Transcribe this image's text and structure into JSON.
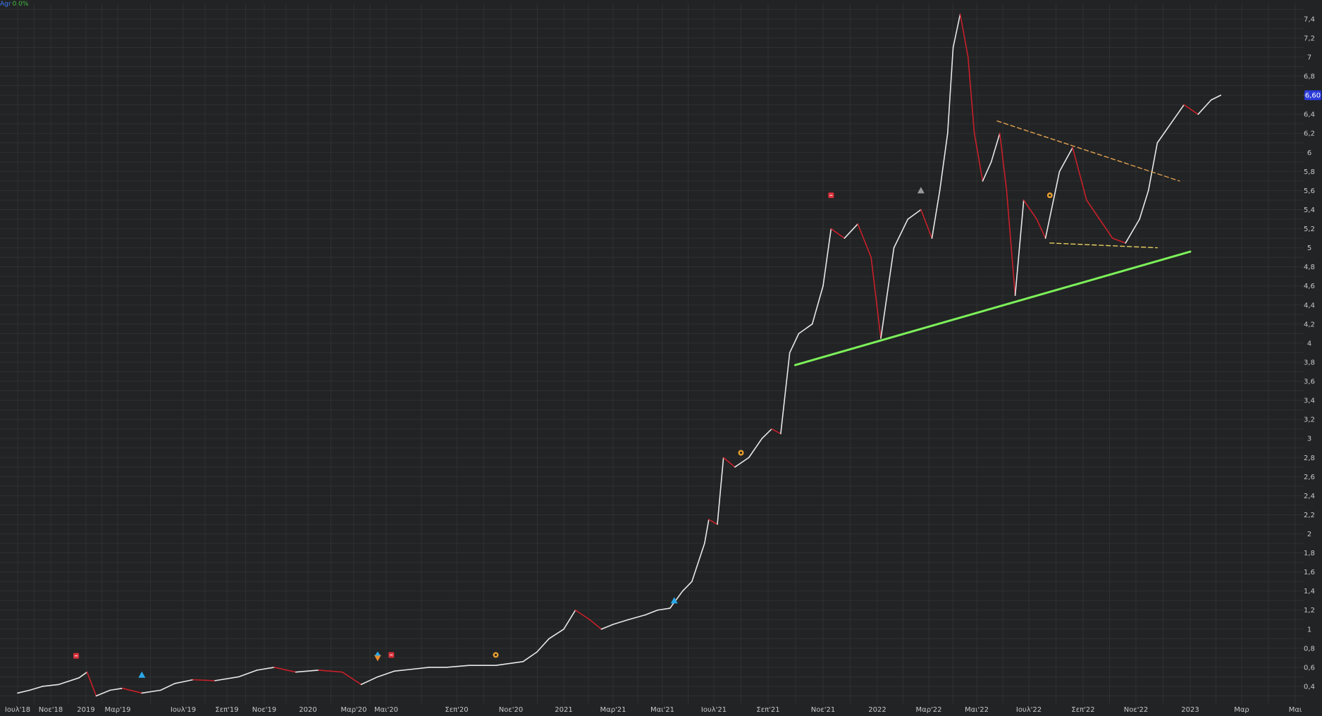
{
  "legend": {
    "name": "Agr",
    "value": "0.0%"
  },
  "colors": {
    "background": "#222324",
    "grid": "#2e3031",
    "up": "#e8e8e8",
    "down": "#c8202a",
    "support": "#7cf05a",
    "resistance": "#e0a050",
    "base_line": "#e8d060",
    "last_price_bg": "#2a3ad8"
  },
  "chart_data": {
    "type": "line",
    "title": "",
    "xlabel": "",
    "ylabel": "",
    "ylim": [
      0.3,
      7.5
    ],
    "grid": true,
    "y_ticks": [
      "0,4",
      "0,6",
      "0,8",
      "1",
      "1,2",
      "1,4",
      "1,6",
      "1,8",
      "2",
      "2,2",
      "2,4",
      "2,6",
      "2,8",
      "3",
      "3,2",
      "3,4",
      "3,6",
      "3,8",
      "4",
      "4,2",
      "4,4",
      "4,6",
      "4,8",
      "5",
      "5,2",
      "5,4",
      "5,6",
      "5,8",
      "6",
      "6,2",
      "6,4",
      "6,6",
      "6,8",
      "7",
      "7,2",
      "7,4"
    ],
    "x_ticks": [
      {
        "date": "2018-07-01",
        "label": "Ιουλ'18"
      },
      {
        "date": "2018-11-01",
        "label": "Νοε'18"
      },
      {
        "date": "2019-01-01",
        "label": "2019"
      },
      {
        "date": "2019-03-01",
        "label": "Μαρ'19"
      },
      {
        "date": "2019-07-01",
        "label": "Ιουλ'19"
      },
      {
        "date": "2019-09-01",
        "label": "Σεπ'19"
      },
      {
        "date": "2019-11-01",
        "label": "Νοε'19"
      },
      {
        "date": "2020-01-01",
        "label": "2020"
      },
      {
        "date": "2020-03-01",
        "label": "Μαρ'20"
      },
      {
        "date": "2020-05-01",
        "label": "Μαι'20"
      },
      {
        "date": "2020-09-01",
        "label": "Σεπ'20"
      },
      {
        "date": "2020-11-01",
        "label": "Νοε'20"
      },
      {
        "date": "2021-01-01",
        "label": "2021"
      },
      {
        "date": "2021-03-01",
        "label": "Μαρ'21"
      },
      {
        "date": "2021-05-01",
        "label": "Μαι'21"
      },
      {
        "date": "2021-07-01",
        "label": "Ιουλ'21"
      },
      {
        "date": "2021-09-01",
        "label": "Σεπ'21"
      },
      {
        "date": "2021-11-01",
        "label": "Νοε'21"
      },
      {
        "date": "2022-01-01",
        "label": "2022"
      },
      {
        "date": "2022-03-01",
        "label": "Μαρ'22"
      },
      {
        "date": "2022-05-01",
        "label": "Μαι'22"
      },
      {
        "date": "2022-07-01",
        "label": "Ιουλ'22"
      },
      {
        "date": "2022-09-01",
        "label": "Σεπ'22"
      },
      {
        "date": "2022-11-01",
        "label": "Νοε'22"
      },
      {
        "date": "2023-01-01",
        "label": "2023"
      },
      {
        "date": "2023-03-01",
        "label": "Μαρ"
      },
      {
        "date": "2023-05-01",
        "label": "Μαι"
      }
    ],
    "last_price": {
      "value": 6.6,
      "label": "6,60"
    },
    "series": [
      {
        "values": [
          [
            "2018-07-01",
            0.33
          ],
          [
            "2018-08-15",
            0.36
          ],
          [
            "2018-10-01",
            0.4
          ],
          [
            "2018-11-15",
            0.42
          ],
          [
            "2018-12-20",
            0.49
          ],
          [
            "2019-01-03",
            0.55
          ],
          [
            "2019-01-20",
            0.3
          ],
          [
            "2019-02-15",
            0.36
          ],
          [
            "2019-03-10",
            0.38
          ],
          [
            "2019-04-15",
            0.33
          ],
          [
            "2019-05-20",
            0.36
          ],
          [
            "2019-06-15",
            0.43
          ],
          [
            "2019-07-15",
            0.47
          ],
          [
            "2019-08-15",
            0.46
          ],
          [
            "2019-09-20",
            0.5
          ],
          [
            "2019-10-20",
            0.57
          ],
          [
            "2019-11-15",
            0.6
          ],
          [
            "2019-12-15",
            0.55
          ],
          [
            "2020-01-15",
            0.57
          ],
          [
            "2020-02-15",
            0.55
          ],
          [
            "2020-03-15",
            0.42
          ],
          [
            "2020-04-15",
            0.5
          ],
          [
            "2020-05-15",
            0.56
          ],
          [
            "2020-06-15",
            0.58
          ],
          [
            "2020-07-15",
            0.6
          ],
          [
            "2020-08-15",
            0.6
          ],
          [
            "2020-09-15",
            0.62
          ],
          [
            "2020-10-15",
            0.62
          ],
          [
            "2020-11-15",
            0.66
          ],
          [
            "2020-12-01",
            0.76
          ],
          [
            "2020-12-15",
            0.9
          ],
          [
            "2021-01-01",
            1.0
          ],
          [
            "2021-01-15",
            1.2
          ],
          [
            "2021-02-01",
            1.1
          ],
          [
            "2021-02-15",
            1.0
          ],
          [
            "2021-03-01",
            1.05
          ],
          [
            "2021-03-20",
            1.1
          ],
          [
            "2021-04-10",
            1.15
          ],
          [
            "2021-04-25",
            1.2
          ],
          [
            "2021-05-10",
            1.22
          ],
          [
            "2021-05-25",
            1.4
          ],
          [
            "2021-06-05",
            1.5
          ],
          [
            "2021-06-20",
            1.9
          ],
          [
            "2021-06-25",
            2.15
          ],
          [
            "2021-07-05",
            2.1
          ],
          [
            "2021-07-12",
            2.8
          ],
          [
            "2021-07-25",
            2.7
          ],
          [
            "2021-08-10",
            2.8
          ],
          [
            "2021-08-25",
            3.0
          ],
          [
            "2021-09-05",
            3.1
          ],
          [
            "2021-09-15",
            3.05
          ],
          [
            "2021-09-25",
            3.9
          ],
          [
            "2021-10-05",
            4.1
          ],
          [
            "2021-10-20",
            4.2
          ],
          [
            "2021-11-01",
            4.6
          ],
          [
            "2021-11-10",
            5.2
          ],
          [
            "2021-11-25",
            5.1
          ],
          [
            "2021-12-10",
            5.25
          ],
          [
            "2021-12-25",
            4.9
          ],
          [
            "2022-01-05",
            4.05
          ],
          [
            "2022-01-20",
            5.0
          ],
          [
            "2022-02-05",
            5.3
          ],
          [
            "2022-02-20",
            5.4
          ],
          [
            "2022-03-05",
            5.1
          ],
          [
            "2022-03-15",
            5.6
          ],
          [
            "2022-03-25",
            6.2
          ],
          [
            "2022-04-01",
            7.1
          ],
          [
            "2022-04-10",
            7.45
          ],
          [
            "2022-04-20",
            7.0
          ],
          [
            "2022-04-28",
            6.2
          ],
          [
            "2022-05-08",
            5.7
          ],
          [
            "2022-05-18",
            5.9
          ],
          [
            "2022-05-28",
            6.2
          ],
          [
            "2022-06-05",
            5.6
          ],
          [
            "2022-06-15",
            4.5
          ],
          [
            "2022-06-25",
            5.5
          ],
          [
            "2022-07-10",
            5.3
          ],
          [
            "2022-07-20",
            5.1
          ],
          [
            "2022-08-05",
            5.8
          ],
          [
            "2022-08-20",
            6.05
          ],
          [
            "2022-09-05",
            5.5
          ],
          [
            "2022-09-20",
            5.3
          ],
          [
            "2022-10-05",
            5.1
          ],
          [
            "2022-10-20",
            5.05
          ],
          [
            "2022-11-05",
            5.3
          ],
          [
            "2022-11-15",
            5.6
          ],
          [
            "2022-11-25",
            6.1
          ],
          [
            "2022-12-10",
            6.3
          ],
          [
            "2022-12-25",
            6.5
          ],
          [
            "2023-01-10",
            6.4
          ],
          [
            "2023-01-25",
            6.55
          ],
          [
            "2023-02-05",
            6.6
          ]
        ]
      }
    ],
    "trendlines": [
      {
        "name": "support",
        "from": [
          "2021-10-01",
          3.77
        ],
        "to": [
          "2023-01-01",
          4.96
        ]
      },
      {
        "name": "resistance",
        "from": [
          "2022-05-25",
          6.33
        ],
        "to": [
          "2022-12-20",
          5.7
        ]
      },
      {
        "name": "base",
        "from": [
          "2022-07-25",
          5.05
        ],
        "to": [
          "2022-11-25",
          5.0
        ]
      }
    ],
    "markers": [
      {
        "date": "2018-12-15",
        "value": 0.72,
        "type": "red-square"
      },
      {
        "date": "2019-04-15",
        "value": 0.52,
        "type": "blue-triangle"
      },
      {
        "date": "2020-04-15",
        "value": 0.7,
        "type": "orange-triangle"
      },
      {
        "date": "2020-05-10",
        "value": 0.73,
        "type": "red-square"
      },
      {
        "date": "2020-10-15",
        "value": 0.73,
        "type": "orange-circle"
      },
      {
        "date": "2021-05-15",
        "value": 1.3,
        "type": "blue-triangle"
      },
      {
        "date": "2021-08-01",
        "value": 2.85,
        "type": "orange-circle"
      },
      {
        "date": "2021-11-10",
        "value": 5.55,
        "type": "red-square"
      },
      {
        "date": "2022-02-20",
        "value": 5.6,
        "type": "grey-triangle"
      },
      {
        "date": "2022-07-25",
        "value": 5.55,
        "type": "orange-circle"
      }
    ]
  }
}
